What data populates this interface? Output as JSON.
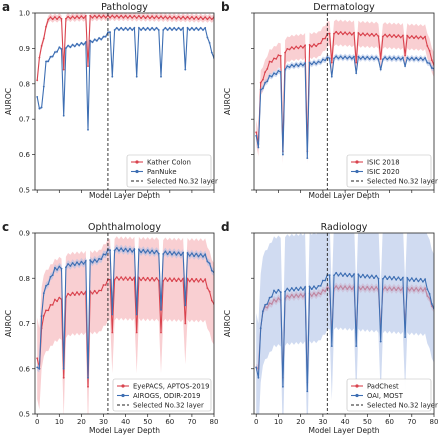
{
  "chart_data": [
    {
      "type": "line",
      "panel_label": "a",
      "title": "Pathology",
      "xlabel": "Model Layer Depth",
      "ylabel": "AUROC",
      "xlim": [
        -1,
        80
      ],
      "ylim": [
        0.5,
        1.0
      ],
      "yticks": [
        "0.5",
        "0.6",
        "0.7",
        "0.8",
        "0.9",
        "1.0"
      ],
      "xticks": [],
      "vline": 32,
      "legend_position": "bottom-right",
      "legend_extra": "Selected No.32 layer",
      "series": [
        {
          "name": "Kather Colon",
          "color": "#d9434e",
          "band": "#f4a7ad",
          "start": 0.85,
          "plateaus": [
            [
              5,
              0.985
            ],
            [
              28,
              0.99
            ],
            [
              34,
              0.99
            ],
            [
              80,
              0.985
            ]
          ],
          "dips": [
            [
              0,
              0.81
            ],
            [
              12,
              0.84
            ],
            [
              23,
              0.85
            ]
          ],
          "band_width": 0.01
        },
        {
          "name": "PanNuke",
          "color": "#3e6fb3",
          "band": "#a9bde6",
          "start": 0.76,
          "plateaus": [
            [
              2,
              0.73
            ],
            [
              4,
              0.86
            ],
            [
              10,
              0.9
            ],
            [
              22,
              0.915
            ],
            [
              30,
              0.93
            ],
            [
              34,
              0.955
            ],
            [
              76,
              0.955
            ],
            [
              80,
              0.87
            ]
          ],
          "dips": [
            [
              1,
              0.73
            ],
            [
              12,
              0.71
            ],
            [
              23,
              0.67
            ],
            [
              34,
              0.82
            ],
            [
              45,
              0.82
            ],
            [
              56,
              0.82
            ],
            [
              67,
              0.84
            ]
          ],
          "band_width": 0.004
        }
      ]
    },
    {
      "type": "line",
      "panel_label": "b",
      "title": "Dermatology",
      "xlabel": "Model Layer Depth",
      "ylabel": "AUROC",
      "xlim": [
        -1,
        80
      ],
      "ylim": [
        0.5,
        1.0
      ],
      "yticks": [],
      "xticks": [],
      "vline": 32,
      "legend_position": "bottom-right",
      "legend_extra": "Selected No.32 layer",
      "series": [
        {
          "name": "ISIC 2018",
          "color": "#d9434e",
          "band": "#f4a7ad",
          "start": 0.66,
          "plateaus": [
            [
              2,
              0.8
            ],
            [
              6,
              0.86
            ],
            [
              15,
              0.9
            ],
            [
              28,
              0.91
            ],
            [
              33,
              0.945
            ],
            [
              76,
              0.93
            ],
            [
              80,
              0.85
            ]
          ],
          "dips": [
            [
              1,
              0.63
            ],
            [
              12,
              0.61
            ],
            [
              23,
              0.61
            ],
            [
              34,
              0.86
            ],
            [
              45,
              0.86
            ],
            [
              56,
              0.87
            ],
            [
              67,
              0.88
            ]
          ],
          "band_width": 0.035
        },
        {
          "name": "ISIC 2020",
          "color": "#3e6fb3",
          "band": "#a9bde6",
          "start": 0.65,
          "plateaus": [
            [
              2,
              0.78
            ],
            [
              6,
              0.82
            ],
            [
              15,
              0.85
            ],
            [
              28,
              0.86
            ],
            [
              33,
              0.875
            ],
            [
              76,
              0.87
            ],
            [
              80,
              0.84
            ]
          ],
          "dips": [
            [
              1,
              0.62
            ],
            [
              12,
              0.6
            ],
            [
              23,
              0.59
            ],
            [
              34,
              0.82
            ],
            [
              45,
              0.83
            ],
            [
              56,
              0.84
            ],
            [
              67,
              0.85
            ]
          ],
          "band_width": 0.008
        }
      ]
    },
    {
      "type": "line",
      "panel_label": "c",
      "title": "Ophthalmology",
      "xlabel": "Model Layer Depth",
      "ylabel": "AUROC",
      "xlim": [
        -1,
        80
      ],
      "ylim": [
        0.5,
        0.9
      ],
      "yticks": [
        "0.5",
        "0.6",
        "0.7",
        "0.8",
        "0.9"
      ],
      "xticks": [
        "0",
        "10",
        "20",
        "30",
        "40",
        "50",
        "60",
        "70",
        "80"
      ],
      "vline": 32,
      "legend_position": "bottom-right",
      "legend_extra": "Selected No.32 layer",
      "series": [
        {
          "name": "EyePACS, APTOS-2019",
          "color": "#d9434e",
          "band": "#f4a7ad",
          "start": 0.62,
          "plateaus": [
            [
              3,
              0.72
            ],
            [
              8,
              0.75
            ],
            [
              15,
              0.765
            ],
            [
              28,
              0.77
            ],
            [
              33,
              0.8
            ],
            [
              76,
              0.795
            ],
            [
              80,
              0.74
            ]
          ],
          "dips": [
            [
              1,
              0.6
            ],
            [
              12,
              0.58
            ],
            [
              23,
              0.56
            ],
            [
              34,
              0.68
            ],
            [
              45,
              0.68
            ],
            [
              56,
              0.68
            ],
            [
              67,
              0.7
            ]
          ],
          "band_width": 0.09
        },
        {
          "name": "AIROGS, ODIR-2019",
          "color": "#3e6fb3",
          "band": "#a9bde6",
          "start": 0.6,
          "plateaus": [
            [
              3,
              0.77
            ],
            [
              8,
              0.82
            ],
            [
              15,
              0.83
            ],
            [
              28,
              0.84
            ],
            [
              33,
              0.865
            ],
            [
              76,
              0.85
            ],
            [
              80,
              0.81
            ]
          ],
          "dips": [
            [
              1,
              0.6
            ],
            [
              12,
              0.6
            ],
            [
              23,
              0.58
            ],
            [
              34,
              0.72
            ],
            [
              45,
              0.72
            ],
            [
              56,
              0.73
            ],
            [
              67,
              0.74
            ]
          ],
          "band_width": 0.008
        }
      ]
    },
    {
      "type": "line",
      "panel_label": "d",
      "title": "Radiology",
      "xlabel": "Model Layer Depth",
      "ylabel": "AUROC",
      "xlim": [
        -1,
        80
      ],
      "ylim": [
        0.5,
        0.9
      ],
      "yticks": [],
      "xticks": [
        "0",
        "10",
        "20",
        "30",
        "40",
        "50",
        "60",
        "70",
        "80"
      ],
      "vline": 32,
      "legend_position": "bottom-right",
      "legend_extra": "Selected No.32 layer",
      "series": [
        {
          "name": "PadChest",
          "color": "#d9434e",
          "band": "#f4a7ad",
          "start": 0.6,
          "plateaus": [
            [
              3,
              0.73
            ],
            [
              8,
              0.75
            ],
            [
              15,
              0.76
            ],
            [
              28,
              0.765
            ],
            [
              33,
              0.78
            ],
            [
              76,
              0.775
            ],
            [
              80,
              0.73
            ]
          ],
          "dips": [
            [
              1,
              0.6
            ],
            [
              12,
              0.58
            ],
            [
              23,
              0.57
            ],
            [
              34,
              0.68
            ],
            [
              45,
              0.68
            ],
            [
              56,
              0.69
            ],
            [
              67,
              0.7
            ]
          ],
          "band_width": 0.008
        },
        {
          "name": "OAI, MOST",
          "color": "#3e6fb3",
          "band": "#a9bde6",
          "start": 0.6,
          "plateaus": [
            [
              3,
              0.73
            ],
            [
              8,
              0.77
            ],
            [
              15,
              0.775
            ],
            [
              28,
              0.78
            ],
            [
              33,
              0.81
            ],
            [
              76,
              0.795
            ],
            [
              80,
              0.73
            ]
          ],
          "dips": [
            [
              1,
              0.58
            ],
            [
              12,
              0.56
            ],
            [
              23,
              0.55
            ],
            [
              34,
              0.65
            ],
            [
              45,
              0.65
            ],
            [
              56,
              0.66
            ],
            [
              67,
              0.67
            ]
          ],
          "band_width": 0.12
        }
      ]
    }
  ]
}
